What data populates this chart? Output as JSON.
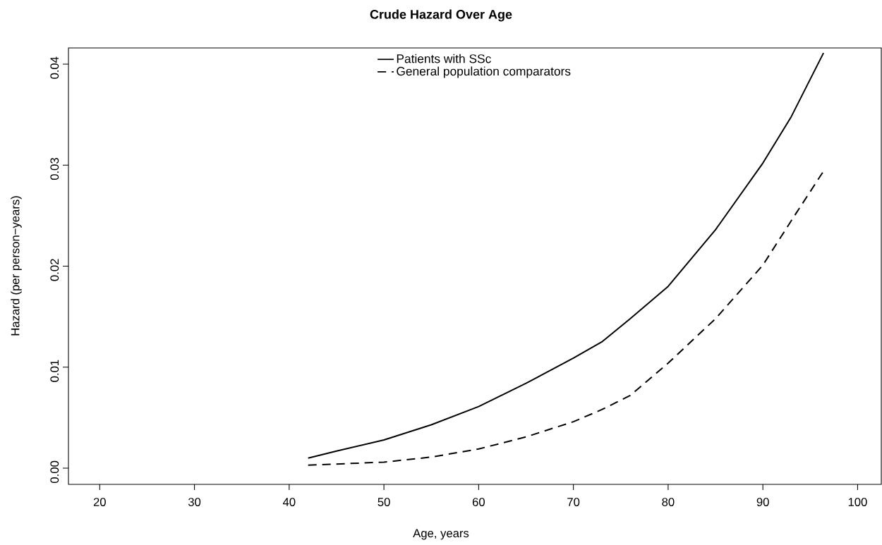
{
  "chart_data": {
    "type": "line",
    "title": "Crude Hazard Over Age",
    "xlabel": "Age, years",
    "ylabel": "Hazard (per person−years)",
    "xlim": [
      16.7,
      102.5
    ],
    "ylim": [
      -0.0016,
      0.0416
    ],
    "xticks": [
      20,
      30,
      40,
      50,
      60,
      70,
      80,
      90,
      100
    ],
    "yticks": [
      {
        "value": 0,
        "label": "0.00"
      },
      {
        "value": 0.01,
        "label": "0.01"
      },
      {
        "value": 0.02,
        "label": "0.02"
      },
      {
        "value": 0.03,
        "label": "0.03"
      },
      {
        "value": 0.04,
        "label": "0.04"
      }
    ],
    "legend": "top",
    "grid": false,
    "marker": "none",
    "series": [
      {
        "name": "Patients with SSc",
        "color": "#000000",
        "line_style": "solid",
        "x": [
          42,
          45,
          50,
          55,
          60,
          65,
          70,
          73,
          76,
          80,
          85,
          90,
          93,
          96.4
        ],
        "values": [
          0.001,
          0.0017,
          0.0028,
          0.0043,
          0.0061,
          0.0084,
          0.0109,
          0.0125,
          0.0148,
          0.018,
          0.0236,
          0.0302,
          0.0348,
          0.0411
        ]
      },
      {
        "name": "General population comparators",
        "color": "#000000",
        "line_style": "dashed",
        "x": [
          42,
          50,
          55,
          60,
          65,
          70,
          73,
          76,
          80,
          85,
          90,
          93,
          96.4
        ],
        "values": [
          0.0003,
          0.0006,
          0.0011,
          0.0019,
          0.0031,
          0.0046,
          0.0058,
          0.0072,
          0.0104,
          0.0148,
          0.0201,
          0.0245,
          0.0294
        ]
      }
    ]
  }
}
